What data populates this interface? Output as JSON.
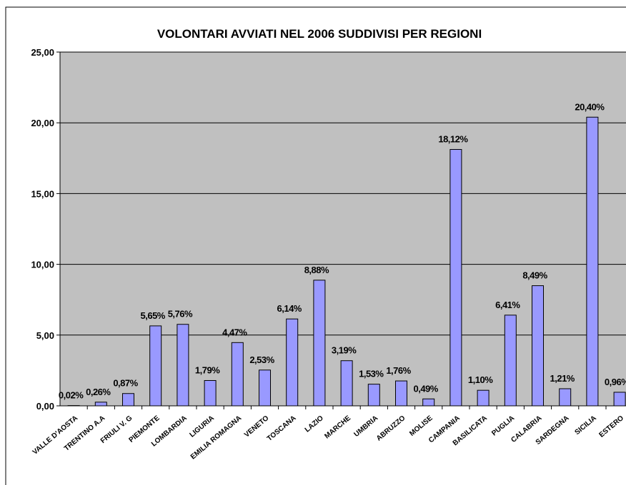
{
  "chart_data": {
    "type": "bar",
    "title": "VOLONTARI AVVIATI NEL 2006 SUDDIVISI PER REGIONI",
    "categories": [
      "VALLE D'AOSTA",
      "TRENTINO A.A",
      "FRIULI V. G",
      "PIEMONTE",
      "LOMBARDIA",
      "LIGURIA",
      "EMILIA ROMAGNA",
      "VENETO",
      "TOSCANA",
      "LAZIO",
      "MARCHE",
      "UMBRIA",
      "ABRUZZO",
      "MOLISE",
      "CAMPANIA",
      "BASILICATA",
      "PUGLIA",
      "CALABRIA",
      "SARDEGNA",
      "SICILIA",
      "ESTERO"
    ],
    "values": [
      0.02,
      0.26,
      0.87,
      5.65,
      5.76,
      1.79,
      4.47,
      2.53,
      6.14,
      8.88,
      3.19,
      1.53,
      1.76,
      0.49,
      18.12,
      1.1,
      6.41,
      8.49,
      1.21,
      20.4,
      0.96
    ],
    "value_labels": [
      "0,02%",
      "0,26%",
      "0,87%",
      "5,65%",
      "5,76%",
      "1,79%",
      "4,47%",
      "2,53%",
      "6,14%",
      "8,88%",
      "3,19%",
      "1,53%",
      "1,76%",
      "0,49%",
      "18,12%",
      "1,10%",
      "6,41%",
      "8,49%",
      "1,21%",
      "20,40%",
      "0,96%"
    ],
    "color": "#9999ff",
    "ylim": [
      0,
      25
    ],
    "yticks": [
      {
        "value": 0,
        "label": "0,00"
      },
      {
        "value": 5,
        "label": "5,00"
      },
      {
        "value": 10,
        "label": "10,00"
      },
      {
        "value": 15,
        "label": "15,00"
      },
      {
        "value": 20,
        "label": "20,00"
      },
      {
        "value": 25,
        "label": "25,00"
      }
    ],
    "grid": true
  }
}
